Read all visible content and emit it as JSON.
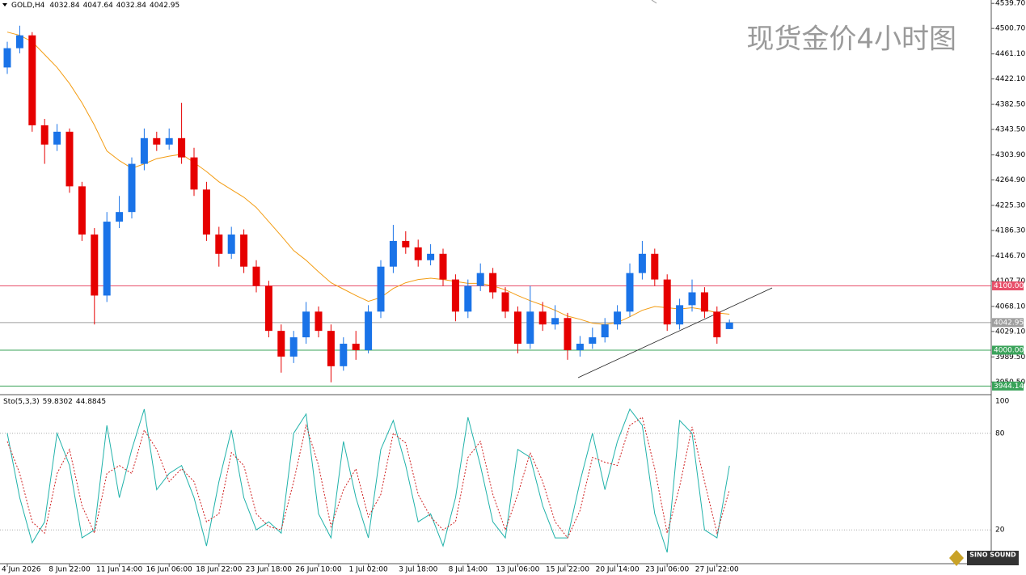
{
  "chart_data": [
    {
      "type": "candlestick",
      "title": "现货金价4小时图",
      "symbol": "GOLD,H4",
      "logo": "SINO SOUND",
      "up_color": "#1a73e8",
      "down_color": "#e60000",
      "categories": [
        "4 Jun 2026",
        null,
        null,
        null,
        null,
        "8 Jun 22:00",
        null,
        null,
        null,
        "11 Jun 14:00",
        null,
        null,
        null,
        "16 Jun 06:00",
        null,
        null,
        null,
        "18 Jun 22:00",
        null,
        null,
        null,
        "23 Jun 18:00",
        null,
        null,
        null,
        "26 Jun 10:00",
        null,
        null,
        null,
        "1 Jul 02:00",
        null,
        null,
        null,
        "3 Jul 18:00",
        null,
        null,
        null,
        "8 Jul 14:00",
        null,
        null,
        null,
        "13 Jul 06:00",
        null,
        null,
        null,
        "15 Jul 22:00",
        null,
        null,
        null,
        "20 Jul 14:00",
        null,
        null,
        null,
        "23 Jul 06:00",
        null,
        null,
        null,
        "27 Jul 22:00",
        null
      ],
      "open": [
        4440,
        4470,
        4490,
        4350,
        4320,
        4340,
        4255,
        4180,
        4085,
        4200,
        4215,
        4290,
        4330,
        4320,
        4330,
        4300,
        4250,
        4180,
        4150,
        4180,
        4130,
        4100,
        4030,
        3990,
        4020,
        4060,
        4030,
        3975,
        4010,
        4000,
        4060,
        4130,
        4170,
        4160,
        4140,
        4150,
        4110,
        4060,
        4100,
        4120,
        4090,
        4060,
        4010,
        4060,
        4040,
        4050,
        4000,
        4010,
        4020,
        4040,
        4060,
        4120,
        4150,
        4110,
        4040,
        4070,
        4090,
        4060,
        4032.84
      ],
      "high": [
        4480,
        4505,
        4495,
        4360,
        4352,
        4345,
        4262,
        4190,
        4215,
        4240,
        4300,
        4345,
        4340,
        4345,
        4385,
        4315,
        4262,
        4192,
        4192,
        4188,
        4140,
        4108,
        4040,
        4030,
        4075,
        4068,
        4040,
        4020,
        4030,
        4070,
        4140,
        4195,
        4185,
        4172,
        4165,
        4158,
        4118,
        4110,
        4135,
        4128,
        4098,
        4068,
        4100,
        4075,
        4070,
        4058,
        4022,
        4035,
        4050,
        4070,
        4135,
        4170,
        4158,
        4118,
        4080,
        4110,
        4098,
        4068,
        4047.64
      ],
      "low": [
        4430,
        4462,
        4340,
        4290,
        4310,
        4245,
        4170,
        4040,
        4075,
        4190,
        4205,
        4280,
        4310,
        4312,
        4290,
        4240,
        4170,
        4130,
        4142,
        4120,
        4090,
        4020,
        3965,
        3980,
        4010,
        4020,
        3950,
        3968,
        3985,
        3995,
        4050,
        4120,
        4150,
        4130,
        4132,
        4100,
        4045,
        4050,
        4092,
        4080,
        4050,
        3995,
        4002,
        4030,
        4032,
        3985,
        3990,
        4002,
        4012,
        4032,
        4052,
        4110,
        4100,
        4030,
        4032,
        4060,
        4050,
        4010,
        4032.84
      ],
      "close": [
        4470,
        4490,
        4350,
        4320,
        4340,
        4255,
        4180,
        4085,
        4200,
        4215,
        4290,
        4330,
        4320,
        4330,
        4300,
        4250,
        4180,
        4150,
        4180,
        4130,
        4100,
        4030,
        3990,
        4020,
        4060,
        4030,
        3975,
        4010,
        4000,
        4060,
        4130,
        4170,
        4160,
        4140,
        4150,
        4110,
        4060,
        4100,
        4120,
        4090,
        4060,
        4010,
        4060,
        4040,
        4050,
        4000,
        4010,
        4020,
        4040,
        4060,
        4120,
        4150,
        4110,
        4040,
        4070,
        4090,
        4060,
        4020,
        4042.95
      ],
      "overlays": [
        {
          "type": "line",
          "color": "#f39c12",
          "values": [
            4495,
            4490,
            4480,
            4460,
            4440,
            4415,
            4385,
            4350,
            4310,
            4295,
            4283,
            4290,
            4298,
            4302,
            4305,
            4292,
            4278,
            4262,
            4250,
            4238,
            4222,
            4200,
            4178,
            4155,
            4140,
            4122,
            4105,
            4095,
            4085,
            4076,
            4082,
            4096,
            4105,
            4110,
            4112,
            4110,
            4107,
            4104,
            4104,
            4100,
            4094,
            4085,
            4077,
            4070,
            4062,
            4053,
            4048,
            4042,
            4040,
            4043,
            4052,
            4062,
            4068,
            4066,
            4064,
            4066,
            4063,
            4058,
            4056
          ]
        }
      ],
      "levels": [
        {
          "value": 4100,
          "label": "4100.00",
          "color": "#e8506a"
        },
        4042.95,
        {
          "value": 4000,
          "label": "4000.00",
          "color": "#3aa35a"
        },
        3944.14
      ],
      "level_colors": [
        "#e8506a",
        "#9e9e9e",
        "#3aa35a",
        "#3aa35a"
      ],
      "ylim": [
        3932,
        4545
      ],
      "yticks": [
        {
          "value": 4539.7,
          "label": "4539.70"
        },
        {
          "value": 4500.7,
          "label": "4500.70"
        },
        {
          "value": 4461.1,
          "label": "4461.10"
        },
        {
          "value": 4422.1,
          "label": "4422.10"
        },
        {
          "value": 4382.5,
          "label": "4382.50"
        },
        {
          "value": 4343.5,
          "label": "4343.50"
        },
        {
          "value": 4303.9,
          "label": "4303.90"
        },
        {
          "value": 4264.9,
          "label": "4264.90"
        },
        {
          "value": 4225.3,
          "label": "4225.30"
        },
        {
          "value": 4186.3,
          "label": "4186.30"
        },
        {
          "value": 4146.7,
          "label": "4146.70"
        },
        {
          "value": 4107.7,
          "label": "4107.70"
        },
        {
          "value": 4068.1,
          "label": "4068.10"
        },
        {
          "value": 4029.1,
          "label": "4029.10"
        },
        {
          "value": 3989.5,
          "label": "3989.50"
        },
        {
          "value": 3950.5,
          "label": "3950.50"
        }
      ]
    },
    {
      "type": "line",
      "title": "Sto(5,3,3)",
      "series": [
        {
          "color": "#20b2aa",
          "dashed": false,
          "values": [
            80,
            40,
            12,
            25,
            80,
            60,
            15,
            20,
            85,
            40,
            70,
            95,
            45,
            55,
            60,
            40,
            10,
            50,
            82,
            40,
            20,
            25,
            18,
            80,
            92,
            30,
            15,
            75,
            40,
            15,
            70,
            88,
            60,
            25,
            30,
            10,
            40,
            90,
            60,
            25,
            15,
            70,
            65,
            35,
            15,
            15,
            50,
            80,
            45,
            75,
            95,
            85,
            30,
            6,
            88,
            80,
            20,
            15,
            59.8302
          ]
        },
        {
          "color": "#d02020",
          "dashed": true,
          "values": [
            75,
            55,
            25,
            18,
            55,
            70,
            35,
            18,
            55,
            60,
            55,
            82,
            70,
            50,
            58,
            50,
            25,
            30,
            68,
            60,
            30,
            22,
            20,
            50,
            85,
            60,
            22,
            45,
            58,
            28,
            42,
            80,
            74,
            42,
            28,
            20,
            25,
            65,
            75,
            42,
            20,
            42,
            68,
            50,
            25,
            15,
            32,
            65,
            62,
            60,
            85,
            90,
            58,
            18,
            47,
            84,
            50,
            18,
            44.8845
          ]
        }
      ],
      "ylim": [
        0,
        100
      ],
      "yticks": [
        100,
        80,
        20
      ]
    }
  ]
}
